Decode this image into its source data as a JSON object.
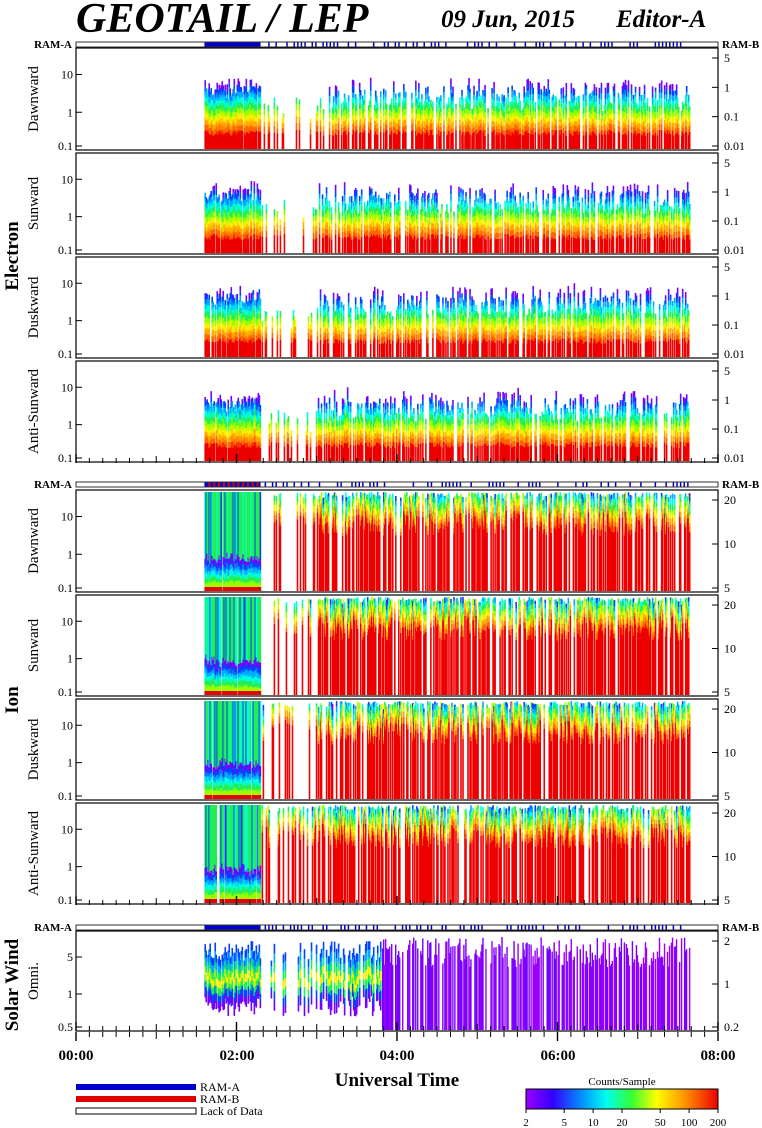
{
  "header": {
    "title": "GEOTAIL / LEP",
    "date": "09 Jun, 2015",
    "editor": "Editor-A"
  },
  "ram_labels": {
    "left": "RAM-A",
    "right": "RAM-B"
  },
  "x_axis": {
    "title": "Universal Time",
    "tick_labels": [
      "00:00",
      "02:00",
      "04:00",
      "06:00",
      "08:00"
    ]
  },
  "legend": {
    "ram_a": "RAM-A",
    "ram_b": "RAM-B",
    "lack": "Lack of Data",
    "colors": {
      "ram_a": "#0000cc",
      "ram_b": "#dd0000"
    }
  },
  "colorbar": {
    "title": "Counts/Sample",
    "tick_labels": [
      "2",
      "5",
      "10",
      "20",
      "50",
      "100",
      "200"
    ],
    "scale": "log",
    "range": [
      2,
      200
    ]
  },
  "chart_data": {
    "type": "heatmap",
    "x_range_hours": [
      0,
      8
    ],
    "data_start_hours": 1.6,
    "data_end_hours": 7.65,
    "groups": [
      {
        "name": "Electron",
        "panels": [
          {
            "label": "Dawnward",
            "left_ticks": [
              "10",
              "1",
              "0.1"
            ],
            "right_ticks": [
              "5",
              "1",
              "0.1",
              "0.01"
            ]
          },
          {
            "label": "Sunward",
            "left_ticks": [
              "10",
              "1",
              "0.1"
            ],
            "right_ticks": [
              "5",
              "1",
              "0.1",
              "0.01"
            ]
          },
          {
            "label": "Duskward",
            "left_ticks": [
              "10",
              "1",
              "0.1"
            ],
            "right_ticks": [
              "5",
              "1",
              "0.1",
              "0.01"
            ]
          },
          {
            "label": "Anti-Sunward",
            "left_ticks": [
              "10",
              "1",
              "0.1"
            ],
            "right_ticks": [
              "5",
              "1",
              "0.1",
              "0.01"
            ]
          }
        ]
      },
      {
        "name": "Ion",
        "panels": [
          {
            "label": "Dawnward",
            "left_ticks": [
              "10",
              "1",
              "0.1"
            ],
            "right_ticks": [
              "20",
              "10",
              "5"
            ]
          },
          {
            "label": "Sunward",
            "left_ticks": [
              "10",
              "1",
              "0.1"
            ],
            "right_ticks": [
              "20",
              "10",
              "5"
            ]
          },
          {
            "label": "Duskward",
            "left_ticks": [
              "10",
              "1",
              "0.1"
            ],
            "right_ticks": [
              "20",
              "10",
              "5"
            ]
          },
          {
            "label": "Anti-Sunward",
            "left_ticks": [
              "10",
              "1",
              "0.1"
            ],
            "right_ticks": [
              "20",
              "10",
              "5"
            ]
          }
        ]
      },
      {
        "name": "Solar Wind",
        "panels": [
          {
            "label": "Omni.",
            "left_ticks": [
              "5",
              "1",
              "0.5"
            ],
            "right_ticks": [
              "2",
              "1",
              "0.2"
            ]
          }
        ]
      }
    ]
  }
}
